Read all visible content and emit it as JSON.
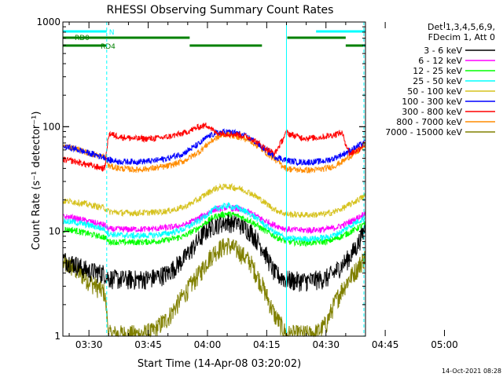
{
  "chart_data": {
    "type": "line",
    "title": "RHESSI Observing Summary Count Rates",
    "xlabel": "Start Time (14-Apr-08 03:20:02)",
    "ylabel": "Count Rate (s⁻¹ detector⁻¹)",
    "yscale": "log",
    "ylim": [
      1,
      1000
    ],
    "xlim_minutes": [
      23.4,
      100.0
    ],
    "x_ticks": [
      "03:30",
      "03:45",
      "04:00",
      "04:15",
      "04:30",
      "04:45",
      "05:00"
    ],
    "y_ticks": [
      "1",
      "10",
      "100",
      "1000"
    ],
    "legend_header": [
      "Det 1,3,4,5,6,9,",
      "FDecim 1, Att 0"
    ],
    "legend_position": "right",
    "footer_date": "14-Oct-2021 08:28",
    "x_minutes": [
      23,
      26,
      30,
      34,
      35,
      38,
      42,
      46,
      50,
      54,
      58,
      60,
      62,
      65,
      68,
      71,
      74,
      77,
      80,
      82,
      84,
      86,
      88,
      90,
      92,
      94,
      96,
      98,
      100
    ],
    "series": [
      {
        "name": "3 - 6 keV",
        "color": "#000000",
        "values": [
          5.5,
          5,
          4.2,
          4.0,
          3.6,
          3.5,
          3.5,
          3.6,
          4.0,
          5.5,
          8.5,
          10.5,
          11.8,
          12.5,
          12.0,
          10.0,
          7.0,
          4.0,
          3.5,
          3.4,
          3.4,
          3.4,
          3.5,
          3.6,
          4.0,
          4.8,
          5.7,
          7.5,
          11.0
        ]
      },
      {
        "name": "6 - 12 keV",
        "color": "#ff00ff",
        "values": [
          14,
          13.5,
          12.5,
          11.5,
          10.5,
          10.5,
          10.5,
          10.6,
          10.9,
          11.5,
          13.5,
          15.0,
          16.3,
          17.0,
          16.3,
          15.0,
          13.0,
          11.5,
          10.5,
          10.4,
          10.3,
          10.3,
          10.4,
          10.5,
          10.8,
          11.4,
          12.3,
          13.5,
          15.0
        ]
      },
      {
        "name": "12 - 25 keV",
        "color": "#00ff00",
        "values": [
          10.5,
          10.3,
          9.5,
          8.8,
          8.0,
          7.9,
          7.9,
          8.0,
          8.3,
          9.0,
          11.0,
          12.5,
          14.0,
          14.8,
          14.0,
          12.5,
          10.5,
          9.0,
          8.0,
          7.9,
          7.8,
          7.8,
          7.9,
          8.0,
          8.4,
          9.0,
          9.8,
          10.8,
          11.8
        ]
      },
      {
        "name": "25 - 50 keV",
        "color": "#00ffff",
        "values": [
          12.5,
          12.3,
          11.5,
          10.5,
          9.5,
          9.2,
          9.1,
          9.2,
          9.6,
          10.5,
          12.8,
          14.6,
          16.5,
          17.7,
          16.6,
          14.6,
          12.0,
          9.8,
          8.6,
          8.5,
          8.5,
          8.5,
          8.6,
          8.8,
          9.2,
          10.0,
          11.2,
          12.5,
          13.5
        ]
      },
      {
        "name": "50 - 100 keV",
        "color": "#d6c21e",
        "values": [
          19.5,
          19.3,
          18.0,
          16.8,
          15.5,
          15.1,
          15.0,
          15.2,
          15.7,
          17.0,
          20.5,
          23.3,
          25.8,
          27.0,
          25.8,
          23.3,
          19.5,
          16.2,
          14.6,
          14.5,
          14.4,
          14.4,
          14.5,
          14.7,
          15.3,
          16.5,
          18.0,
          20.0,
          22.0
        ]
      },
      {
        "name": "100 - 300 keV",
        "color": "#0000ff",
        "values": [
          65,
          62,
          56,
          51,
          48,
          46.5,
          46.5,
          47,
          50,
          56,
          69,
          80,
          87,
          90,
          86,
          77,
          63,
          52,
          48,
          46.5,
          46,
          46,
          46.5,
          47.5,
          50,
          54,
          59,
          65,
          72
        ]
      },
      {
        "name": "300 - 800 keV",
        "color": "#ff0000",
        "values": [
          49,
          47,
          43,
          40,
          86,
          80,
          77,
          77,
          80,
          87,
          100,
          104,
          88,
          86,
          84,
          78,
          65,
          55,
          88,
          82,
          79,
          78,
          79,
          81,
          84,
          88,
          55,
          60,
          70
        ]
      },
      {
        "name": "800 - 7000 keV",
        "color": "#ff8c00",
        "values": [
          66,
          63,
          56,
          51,
          42,
          40,
          39,
          40,
          42,
          47,
          58,
          68,
          78,
          85,
          80,
          73,
          60,
          49,
          40,
          39,
          38.5,
          38.5,
          39,
          40,
          42,
          46,
          52,
          58,
          68
        ]
      },
      {
        "name": "7000 - 15000 keV",
        "color": "#808000",
        "values": [
          5,
          4.5,
          3.4,
          2.6,
          1.05,
          1.05,
          1.05,
          1.1,
          1.5,
          2.5,
          4.0,
          5.3,
          6.5,
          7.5,
          6.5,
          5.0,
          3.0,
          1.6,
          1.05,
          1.05,
          1.05,
          1.05,
          1.1,
          1.3,
          2.0,
          2.8,
          3.6,
          4.5,
          5.8
        ]
      }
    ],
    "flag_bars": [
      {
        "name": "N",
        "color": "#00ffff",
        "segments": [
          [
            23.4,
            34.5
          ],
          [
            87.5,
            100
          ]
        ]
      },
      {
        "name": "RD0",
        "color": "#008000",
        "segments": [
          [
            23.4,
            55.5
          ],
          [
            80.2,
            95
          ]
        ]
      },
      {
        "name": "RD4",
        "color": "#008000",
        "segments": [
          [
            23.4,
            34.5
          ],
          [
            55.5,
            73.8
          ],
          [
            95,
            100
          ]
        ]
      }
    ],
    "vertical_markers": [
      {
        "minute": 34.5,
        "style": "dashed",
        "color": "#00ffff"
      },
      {
        "minute": 80.0,
        "style": "solid",
        "color": "#00ffff"
      },
      {
        "minute": 99.6,
        "style": "dashed",
        "color": "#00ffff"
      }
    ]
  }
}
